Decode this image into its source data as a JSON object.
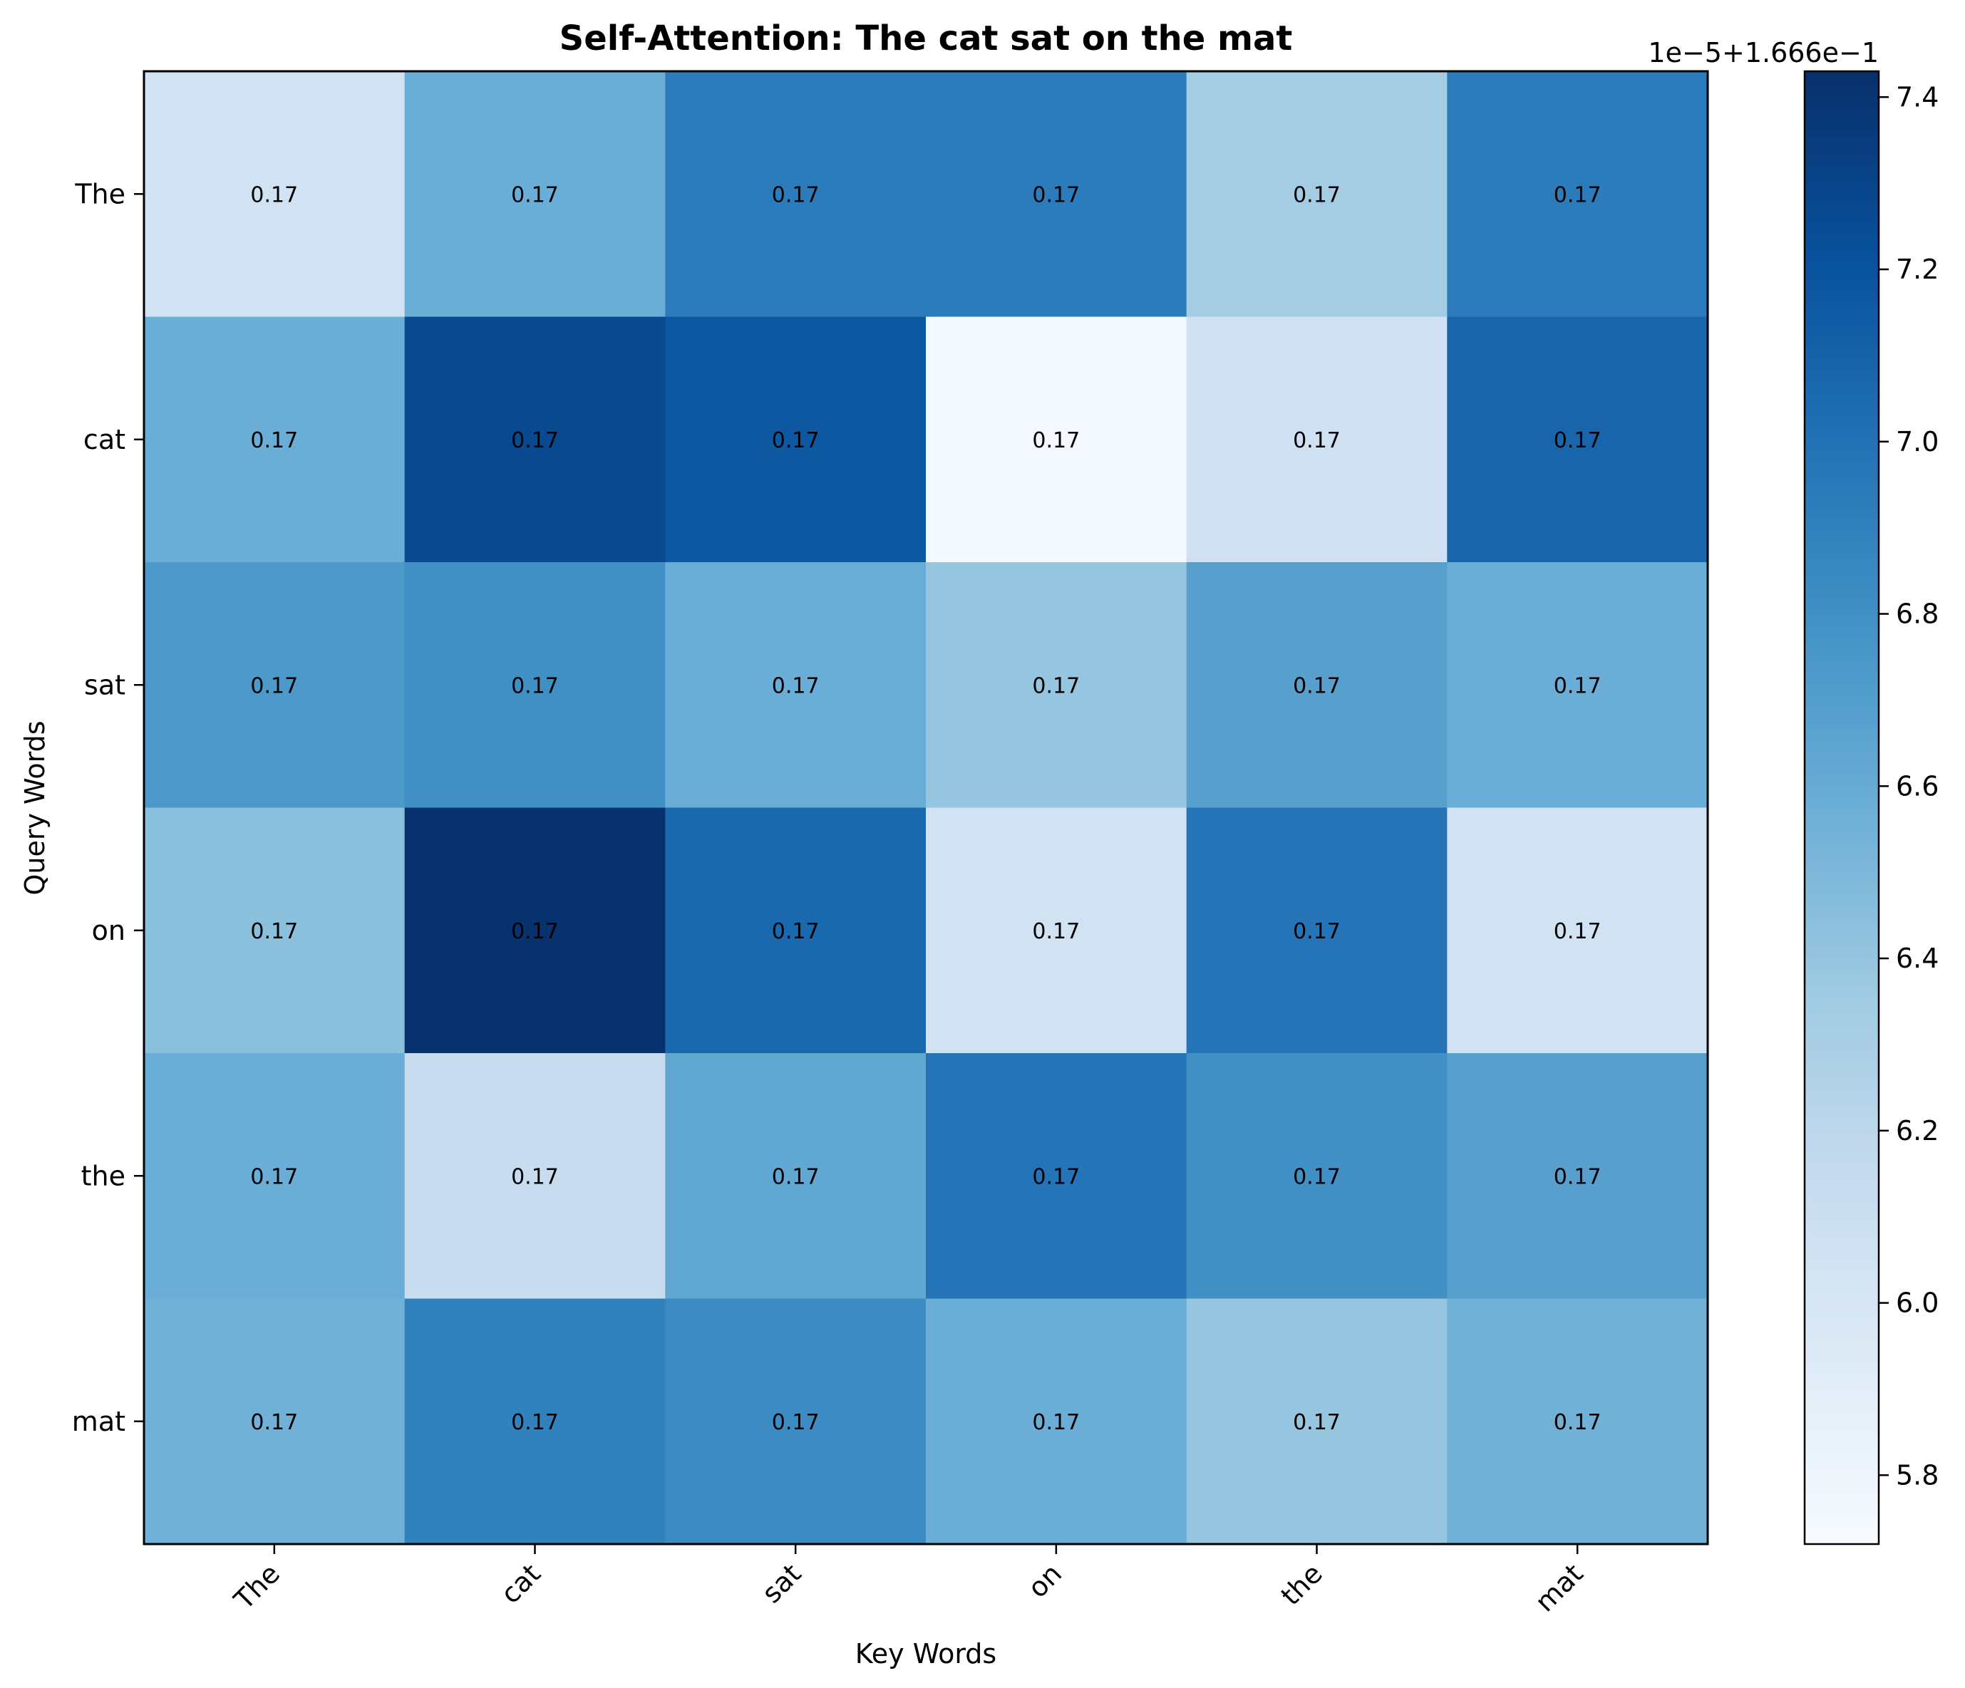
{
  "chart_data": {
    "type": "heatmap",
    "title": "Self-Attention: The cat sat on the mat",
    "xlabel": "Key Words",
    "ylabel": "Query Words",
    "x_categories": [
      "The",
      "cat",
      "sat",
      "on",
      "the",
      "mat"
    ],
    "y_categories": [
      "The",
      "cat",
      "sat",
      "on",
      "the",
      "mat"
    ],
    "values_scaled": [
      [
        6.05,
        6.58,
        6.93,
        6.93,
        6.33,
        6.93
      ],
      [
        6.58,
        7.27,
        7.17,
        5.75,
        6.08,
        7.08
      ],
      [
        6.73,
        6.8,
        6.58,
        6.4,
        6.68,
        6.58
      ],
      [
        6.44,
        7.42,
        7.06,
        6.05,
        6.98,
        6.05
      ],
      [
        6.58,
        6.13,
        6.63,
        6.98,
        6.8,
        6.68
      ],
      [
        6.55,
        6.9,
        6.83,
        6.58,
        6.4,
        6.55
      ]
    ],
    "cell_labels": [
      [
        "0.17",
        "0.17",
        "0.17",
        "0.17",
        "0.17",
        "0.17"
      ],
      [
        "0.17",
        "0.17",
        "0.17",
        "0.17",
        "0.17",
        "0.17"
      ],
      [
        "0.17",
        "0.17",
        "0.17",
        "0.17",
        "0.17",
        "0.17"
      ],
      [
        "0.17",
        "0.17",
        "0.17",
        "0.17",
        "0.17",
        "0.17"
      ],
      [
        "0.17",
        "0.17",
        "0.17",
        "0.17",
        "0.17",
        "0.17"
      ],
      [
        "0.17",
        "0.17",
        "0.17",
        "0.17",
        "0.17",
        "0.17"
      ]
    ],
    "colormap": "Blues",
    "colorbar": {
      "offset_label": "1e−5+1.666e−1",
      "range": [
        5.72,
        7.43
      ],
      "ticks": [
        5.8,
        6.0,
        6.2,
        6.4,
        6.6,
        6.8,
        7.0,
        7.2,
        7.4
      ],
      "tick_labels": [
        "5.8",
        "6.0",
        "6.2",
        "6.4",
        "6.6",
        "6.8",
        "7.0",
        "7.2",
        "7.4"
      ]
    }
  }
}
